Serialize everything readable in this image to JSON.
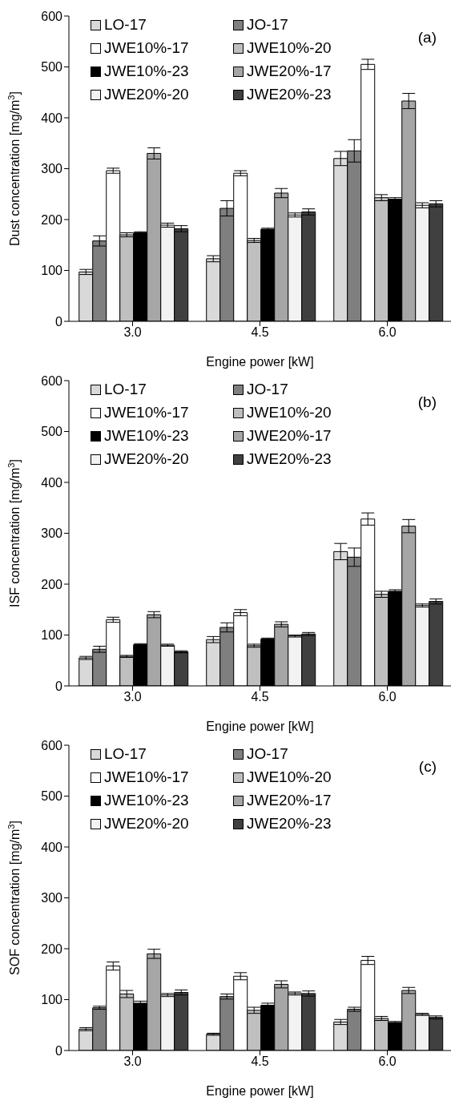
{
  "chart_data": [
    {
      "type": "bar",
      "categories": [
        "3.0",
        "4.5",
        "6.0"
      ],
      "xlabel": "Engine power [kW]",
      "ylabel": "Dust concentration [mg/m$^{3}$]",
      "ylim": [
        0,
        600
      ],
      "yticks": [
        0,
        100,
        200,
        300,
        400,
        500,
        600
      ],
      "legend": "top",
      "annotations": [
        "(a)"
      ],
      "series": [
        {
          "name": "LO-17",
          "color": "#d9d9d9",
          "values": [
            97,
            123,
            320
          ],
          "errors": [
            5,
            6,
            14
          ]
        },
        {
          "name": "JO-17",
          "color": "#7f7f7f",
          "values": [
            158,
            222,
            335
          ],
          "errors": [
            10,
            15,
            22
          ]
        },
        {
          "name": "JWE10%-17",
          "color": "#ffffff",
          "values": [
            296,
            291,
            505
          ],
          "errors": [
            5,
            5,
            10
          ]
        },
        {
          "name": "JWE10%-20",
          "color": "#bfbfbf",
          "values": [
            170,
            159,
            243
          ],
          "errors": [
            4,
            4,
            6
          ]
        },
        {
          "name": "JWE10%-23",
          "color": "#000000",
          "values": [
            174,
            181,
            240
          ],
          "errors": [
            2,
            2,
            3
          ]
        },
        {
          "name": "JWE20%-17",
          "color": "#a6a6a6",
          "values": [
            330,
            252,
            433
          ],
          "errors": [
            11,
            9,
            15
          ]
        },
        {
          "name": "JWE20%-20",
          "color": "#f2f2f2",
          "values": [
            189,
            209,
            228
          ],
          "errors": [
            4,
            4,
            5
          ]
        },
        {
          "name": "JWE20%-23",
          "color": "#404040",
          "values": [
            182,
            215,
            231
          ],
          "errors": [
            6,
            6,
            6
          ]
        }
      ]
    },
    {
      "type": "bar",
      "categories": [
        "3.0",
        "4.5",
        "6.0"
      ],
      "xlabel": "Engine power [kW]",
      "ylabel": "ISF concentration [mg/m$^{3}$]",
      "ylim": [
        0,
        600
      ],
      "yticks": [
        0,
        100,
        200,
        300,
        400,
        500,
        600
      ],
      "legend": "top",
      "annotations": [
        "(b)"
      ],
      "series": [
        {
          "name": "LO-17",
          "color": "#d9d9d9",
          "values": [
            55,
            91,
            264
          ],
          "errors": [
            3,
            6,
            16
          ]
        },
        {
          "name": "JO-17",
          "color": "#7f7f7f",
          "values": [
            72,
            115,
            253
          ],
          "errors": [
            6,
            9,
            18
          ]
        },
        {
          "name": "JWE10%-17",
          "color": "#ffffff",
          "values": [
            130,
            144,
            328
          ],
          "errors": [
            5,
            6,
            12
          ]
        },
        {
          "name": "JWE10%-20",
          "color": "#bfbfbf",
          "values": [
            58,
            79,
            180
          ],
          "errors": [
            2,
            3,
            6
          ]
        },
        {
          "name": "JWE10%-23",
          "color": "#000000",
          "values": [
            81,
            92,
            186
          ],
          "errors": [
            2,
            2,
            3
          ]
        },
        {
          "name": "JWE20%-17",
          "color": "#a6a6a6",
          "values": [
            140,
            121,
            314
          ],
          "errors": [
            6,
            5,
            13
          ]
        },
        {
          "name": "JWE20%-20",
          "color": "#f2f2f2",
          "values": [
            80,
            98,
            158
          ],
          "errors": [
            2,
            2,
            3
          ]
        },
        {
          "name": "JWE20%-23",
          "color": "#404040",
          "values": [
            67,
            102,
            166
          ],
          "errors": [
            2,
            3,
            5
          ]
        }
      ]
    },
    {
      "type": "bar",
      "categories": [
        "3.0",
        "4.5",
        "6.0"
      ],
      "xlabel": "Engine power [kW]",
      "ylabel": "SOF concentration [mg/m$^{3}$]",
      "ylim": [
        0,
        600
      ],
      "yticks": [
        0,
        100,
        200,
        300,
        400,
        500,
        600
      ],
      "legend": "top",
      "annotations": [
        "(c)"
      ],
      "series": [
        {
          "name": "LO-17",
          "color": "#d9d9d9",
          "values": [
            42,
            32,
            56
          ],
          "errors": [
            3,
            2,
            5
          ]
        },
        {
          "name": "JO-17",
          "color": "#7f7f7f",
          "values": [
            84,
            106,
            81
          ],
          "errors": [
            3,
            5,
            4
          ]
        },
        {
          "name": "JWE10%-17",
          "color": "#ffffff",
          "values": [
            166,
            146,
            177
          ],
          "errors": [
            8,
            7,
            8
          ]
        },
        {
          "name": "JWE10%-20",
          "color": "#bfbfbf",
          "values": [
            111,
            79,
            63
          ],
          "errors": [
            7,
            6,
            4
          ]
        },
        {
          "name": "JWE10%-23",
          "color": "#000000",
          "values": [
            93,
            89,
            55
          ],
          "errors": [
            4,
            4,
            2
          ]
        },
        {
          "name": "JWE20%-17",
          "color": "#a6a6a6",
          "values": [
            190,
            130,
            118
          ],
          "errors": [
            9,
            7,
            6
          ]
        },
        {
          "name": "JWE20%-20",
          "color": "#f2f2f2",
          "values": [
            109,
            112,
            71
          ],
          "errors": [
            3,
            3,
            2
          ]
        },
        {
          "name": "JWE20%-23",
          "color": "#404040",
          "values": [
            114,
            112,
            65
          ],
          "errors": [
            5,
            5,
            3
          ]
        }
      ]
    }
  ]
}
